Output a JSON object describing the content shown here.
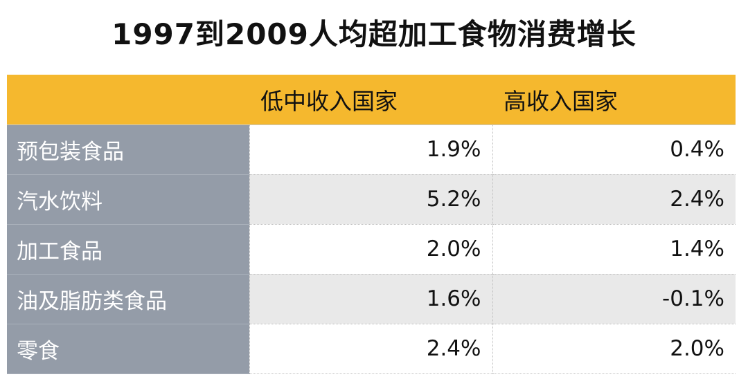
{
  "chart_data": {
    "type": "table",
    "title": "1997到2009人均超加工食物消费增长",
    "columns": [
      "",
      "低中收入国家",
      "高收入国家"
    ],
    "rows": [
      {
        "category": "预包装食品",
        "low_middle_income": "1.9%",
        "high_income": "0.4%"
      },
      {
        "category": "汽水饮料",
        "low_middle_income": "5.2%",
        "high_income": "2.4%"
      },
      {
        "category": "加工食品",
        "low_middle_income": "2.0%",
        "high_income": "1.4%"
      },
      {
        "category": "油及脂肪类食品",
        "low_middle_income": "1.6%",
        "high_income": "-0.1%"
      },
      {
        "category": "零食",
        "low_middle_income": "2.4%",
        "high_income": "2.0%"
      }
    ],
    "values_percent": {
      "low_middle_income": [
        1.9,
        5.2,
        2.0,
        1.6,
        2.4
      ],
      "high_income": [
        0.4,
        2.4,
        1.4,
        -0.1,
        2.0
      ]
    }
  },
  "colors": {
    "header_background": "#f5b82e",
    "row_label_background": "#949ca8",
    "alternate_row_background": "#e9e9e9"
  }
}
